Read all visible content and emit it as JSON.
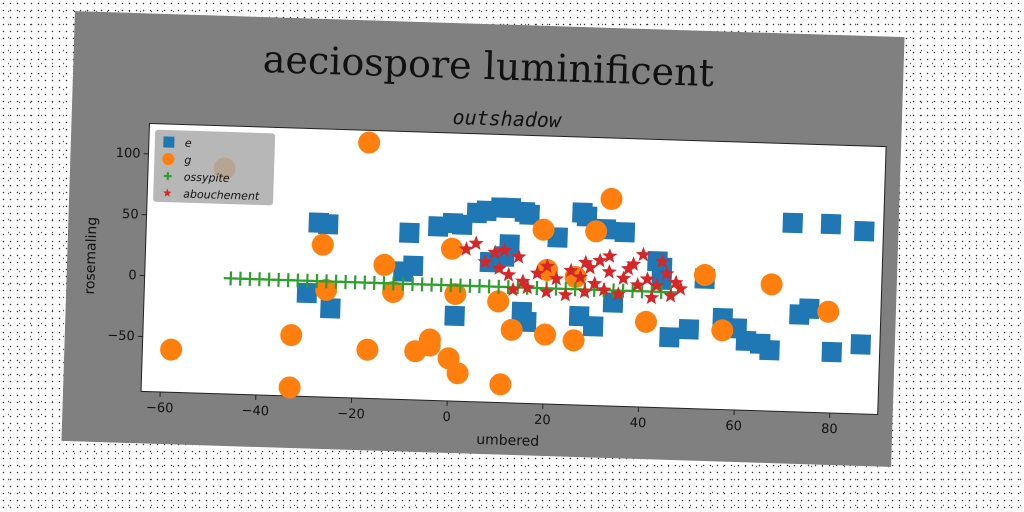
{
  "chart_data": {
    "type": "scatter",
    "title": "aeciospore luminificent",
    "subtitle": "outshadow",
    "xlabel": "umbered",
    "ylabel": "rosemaling",
    "xlim": [
      -64,
      90
    ],
    "ylim": [
      -95,
      125
    ],
    "xticks": [
      -60,
      -40,
      -20,
      0,
      20,
      40,
      60,
      80
    ],
    "yticks": [
      -50,
      0,
      50,
      100
    ],
    "grid": false,
    "legend_position": "top-left",
    "series": [
      {
        "name": "e",
        "marker": "square",
        "color": "#1f77b4",
        "points": [
          [
            -28,
            48
          ],
          [
            -26,
            47
          ],
          [
            -9,
            42
          ],
          [
            -3,
            48
          ],
          [
            0,
            51
          ],
          [
            2,
            50
          ],
          [
            5,
            60
          ],
          [
            7,
            62
          ],
          [
            10,
            65
          ],
          [
            12,
            65
          ],
          [
            15,
            62
          ],
          [
            16,
            60
          ],
          [
            22,
            42
          ],
          [
            27,
            63
          ],
          [
            28,
            60
          ],
          [
            32,
            50
          ],
          [
            36,
            48
          ],
          [
            12,
            35
          ],
          [
            11,
            25
          ],
          [
            8,
            20
          ],
          [
            -8,
            15
          ],
          [
            -10,
            10
          ],
          [
            -30,
            -10
          ],
          [
            -25,
            -22
          ],
          [
            1,
            -25
          ],
          [
            15,
            -20
          ],
          [
            16,
            -28
          ],
          [
            27,
            -22
          ],
          [
            30,
            -30
          ],
          [
            34,
            -10
          ],
          [
            43,
            25
          ],
          [
            44,
            20
          ],
          [
            44,
            10
          ],
          [
            46,
            -37
          ],
          [
            50,
            -30
          ],
          [
            53,
            12
          ],
          [
            57,
            -20
          ],
          [
            60,
            -28
          ],
          [
            62,
            -38
          ],
          [
            65,
            -40
          ],
          [
            67,
            -45
          ],
          [
            71,
            60
          ],
          [
            79,
            60
          ],
          [
            86,
            55
          ],
          [
            75,
            -10
          ],
          [
            73,
            -15
          ],
          [
            80,
            -45
          ],
          [
            86,
            -38
          ]
        ]
      },
      {
        "name": "g",
        "marker": "circle",
        "color": "#ff7f0e",
        "points": [
          [
            -18,
            115
          ],
          [
            -48,
            90
          ],
          [
            33,
            75
          ],
          [
            -27,
            30
          ],
          [
            -14,
            15
          ],
          [
            0,
            30
          ],
          [
            19,
            48
          ],
          [
            30,
            48
          ],
          [
            20,
            15
          ],
          [
            26,
            10
          ],
          [
            -26,
            -7
          ],
          [
            -12,
            -7
          ],
          [
            1,
            -7
          ],
          [
            10,
            -12
          ],
          [
            13,
            -35
          ],
          [
            20,
            -38
          ],
          [
            26,
            -42
          ],
          [
            41,
            -25
          ],
          [
            53,
            15
          ],
          [
            57,
            -30
          ],
          [
            67,
            9
          ],
          [
            79,
            -12
          ],
          [
            -58,
            -60
          ],
          [
            -33,
            -45
          ],
          [
            -17,
            -55
          ],
          [
            -7,
            -55
          ],
          [
            -4,
            -50
          ],
          [
            -4,
            -45
          ],
          [
            0,
            -60
          ],
          [
            2,
            -72
          ],
          [
            11,
            -80
          ],
          [
            -33,
            -88
          ]
        ]
      },
      {
        "name": "ossypite",
        "marker": "plus",
        "color": "#2ca02c",
        "x_range": [
          -46,
          46
        ],
        "x_step": 2,
        "y": 0
      },
      {
        "name": "abouchement",
        "marker": "star",
        "color": "#d62728",
        "points": [
          [
            5,
            35
          ],
          [
            3,
            30
          ],
          [
            9,
            28
          ],
          [
            14,
            25
          ],
          [
            20,
            18
          ],
          [
            28,
            22
          ],
          [
            33,
            28
          ],
          [
            38,
            22
          ],
          [
            40,
            30
          ],
          [
            44,
            25
          ],
          [
            7,
            20
          ],
          [
            10,
            15
          ],
          [
            12,
            10
          ],
          [
            15,
            5
          ],
          [
            18,
            12
          ],
          [
            22,
            8
          ],
          [
            25,
            15
          ],
          [
            27,
            10
          ],
          [
            30,
            5
          ],
          [
            33,
            15
          ],
          [
            36,
            10
          ],
          [
            39,
            5
          ],
          [
            41,
            10
          ],
          [
            43,
            5
          ],
          [
            45,
            15
          ],
          [
            47,
            8
          ],
          [
            48,
            3
          ],
          [
            32,
            0
          ],
          [
            35,
            -3
          ],
          [
            42,
            -5
          ],
          [
            46,
            -3
          ],
          [
            20,
            -3
          ],
          [
            24,
            -5
          ],
          [
            28,
            -2
          ],
          [
            13,
            -2
          ],
          [
            16,
            0
          ],
          [
            29,
            18
          ],
          [
            31,
            24
          ],
          [
            37,
            18
          ],
          [
            11,
            30
          ]
        ]
      }
    ]
  }
}
